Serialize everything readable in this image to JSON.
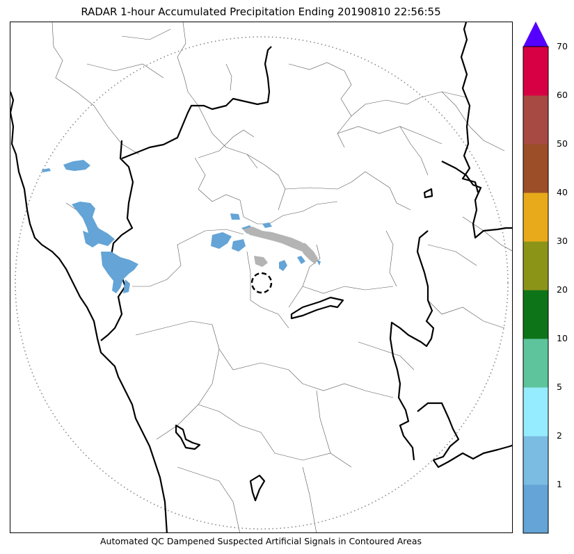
{
  "title": "RADAR 1-hour Accumulated Precipitation Ending 20190810 22:56:55",
  "caption": "Automated QC Dampened Suspected Artificial Signals in Contoured Areas",
  "colorbar": {
    "extend": "max",
    "extend_color": "#5500ff",
    "bins": [
      {
        "label": "",
        "color": "#64a4d6"
      },
      {
        "label": "1",
        "color": "#7abce2"
      },
      {
        "label": "2",
        "color": "#96ecff"
      },
      {
        "label": "5",
        "color": "#5ec49c"
      },
      {
        "label": "10",
        "color": "#0e7418"
      },
      {
        "label": "20",
        "color": "#8c9418"
      },
      {
        "label": "30",
        "color": "#e8aa1a"
      },
      {
        "label": "40",
        "color": "#9c4e28"
      },
      {
        "label": "50",
        "color": "#a84a44"
      },
      {
        "label": "60",
        "color": "#d80044"
      },
      {
        "label": "70",
        "color": ""
      }
    ]
  },
  "map": {
    "range_ring": "dotted",
    "radar_site_marker": "dashed-circle",
    "boundary_color": "#000000",
    "precip_color": "#64a4d6",
    "suspect_signal_color": "#b4b4b4"
  }
}
